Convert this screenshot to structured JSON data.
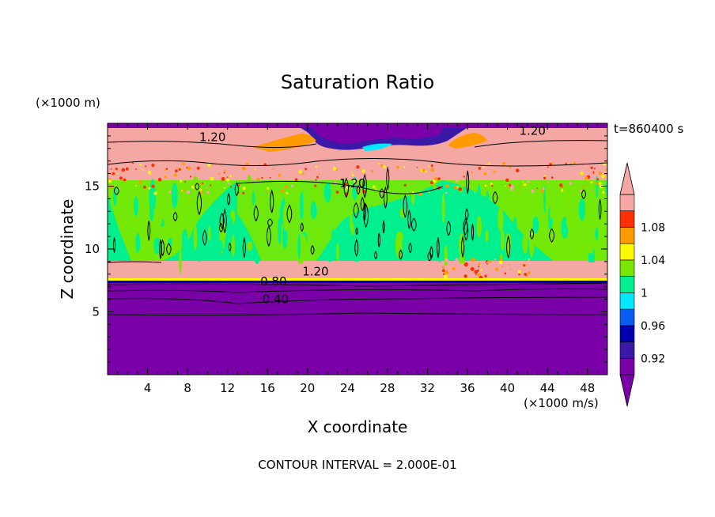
{
  "chart_data": {
    "type": "heatmap",
    "title": "Saturation Ratio",
    "xlabel": "X coordinate",
    "ylabel": "Z coordinate",
    "x_unit": "(×1000 m/s)",
    "y_unit": "(×1000 m)",
    "time_label": "t=860400 s",
    "footer": "CONTOUR INTERVAL = 2.000E-01",
    "xlim": [
      0,
      50
    ],
    "ylim": [
      0,
      20
    ],
    "x_ticks": [
      4,
      8,
      12,
      16,
      20,
      24,
      28,
      32,
      36,
      40,
      44,
      48
    ],
    "y_ticks": [
      5,
      10,
      15
    ],
    "contour_labels": [
      {
        "text": "1.20",
        "x": 10.5,
        "z": 18.6
      },
      {
        "text": "1.20",
        "x": 42.5,
        "z": 19.1
      },
      {
        "text": "1.20",
        "x": 24.5,
        "z": 14.9
      },
      {
        "text": "1.20",
        "x": 20.8,
        "z": 7.9
      },
      {
        "text": "0.80",
        "x": 16.6,
        "z": 7.1
      },
      {
        "text": "0.40",
        "x": 16.8,
        "z": 5.7
      }
    ],
    "colorbar": {
      "levels": [
        0.9,
        0.92,
        0.94,
        0.96,
        0.98,
        1.0,
        1.02,
        1.04,
        1.06,
        1.08,
        1.1
      ],
      "tick_labels": [
        "0.92",
        "0.96",
        "1",
        "1.04",
        "1.08"
      ],
      "colors": [
        "#7a00a8",
        "#3c18a8",
        "#0000b0",
        "#0a5cf0",
        "#00e8ff",
        "#00f090",
        "#78e800",
        "#fffa00",
        "#ff9a00",
        "#ff3000",
        "#f5a7a4"
      ],
      "extend": "both"
    }
  }
}
